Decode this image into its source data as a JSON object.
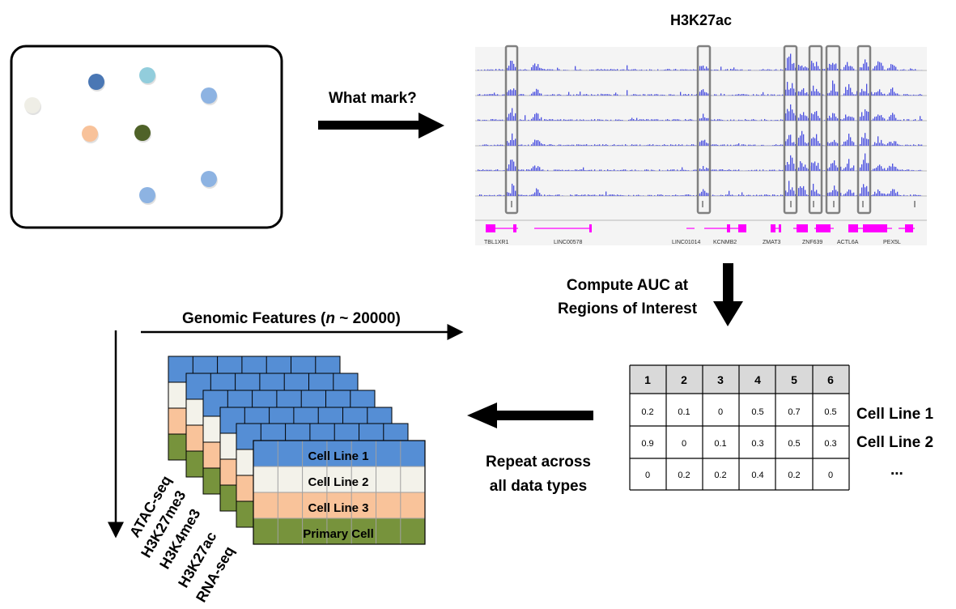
{
  "colors": {
    "track_peak": "#4a4fe0",
    "track_gene": "#ff00ff",
    "highlight_box": "#808080",
    "layer_blue": "#558ed5",
    "layer_white": "#f3f2ea",
    "layer_peach": "#f9c39a",
    "layer_green": "#77933c",
    "table_header": "#d9d9d9"
  },
  "scatter_panel": {
    "dots": [
      {
        "name": "dot-cream",
        "color": "#efeee6"
      },
      {
        "name": "dot-darkblue",
        "color": "#4a77b4"
      },
      {
        "name": "dot-teal",
        "color": "#92cddc"
      },
      {
        "name": "dot-lightblue-1",
        "color": "#8db3e2"
      },
      {
        "name": "dot-peach",
        "color": "#f8c29a"
      },
      {
        "name": "dot-darkgreen",
        "color": "#4f6228"
      },
      {
        "name": "dot-lightblue-2",
        "color": "#8db3e2"
      },
      {
        "name": "dot-lightblue-3",
        "color": "#8db3e2"
      }
    ]
  },
  "labels": {
    "what_mark": "What mark?",
    "track_title": "H3K27ac",
    "compute_line1": "Compute AUC at",
    "compute_line2": "Regions of Interest",
    "genomic_prefix": "Genomic Features (",
    "genomic_n": "n",
    "genomic_suffix": " ~ 20000)",
    "repeat_line1": "Repeat across",
    "repeat_line2": "all data types",
    "ellipsis": "..."
  },
  "genes": [
    "TBL1XR1",
    "LINC00578",
    "LINC01014",
    "KCNMB2",
    "ZMAT3",
    "ZNF639",
    "ACTL6A",
    "PEX5L"
  ],
  "auc_table": {
    "headers": [
      "1",
      "2",
      "3",
      "4",
      "5",
      "6"
    ],
    "rows": [
      {
        "label": "Cell Line 1",
        "values": [
          "0.2",
          "0.1",
          "0",
          "0.5",
          "0.7",
          "0.5"
        ]
      },
      {
        "label": "Cell Line 2",
        "values": [
          "0.9",
          "0",
          "0.1",
          "0.3",
          "0.5",
          "0.3"
        ]
      },
      {
        "label": "",
        "values": [
          "0",
          "0.2",
          "0.2",
          "0.4",
          "0.2",
          "0"
        ]
      }
    ]
  },
  "stack_front_rows": [
    "Cell Line 1",
    "Cell Line 2",
    "Cell Line 3",
    "Primary Cell"
  ],
  "data_types": [
    "ATAC-seq",
    "H3K27me3",
    "H3K4me3",
    "H3K27ac",
    "RNA-seq"
  ]
}
